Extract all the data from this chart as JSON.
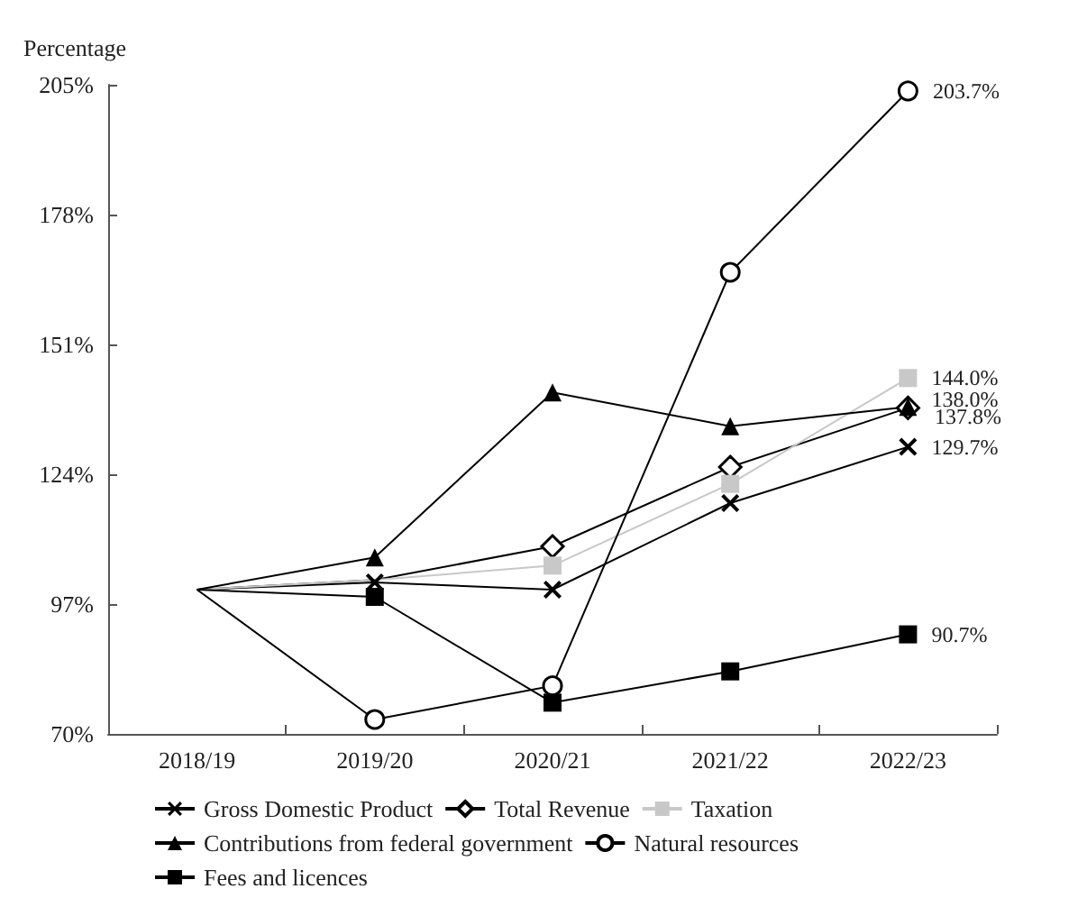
{
  "chart_data": {
    "type": "line",
    "ylabel": "Percentage",
    "categories": [
      "2018/19",
      "2019/20",
      "2020/21",
      "2021/22",
      "2022/23"
    ],
    "ylim": [
      70,
      205
    ],
    "yticks": [
      {
        "value": 70,
        "label": "70%"
      },
      {
        "value": 97,
        "label": "97%"
      },
      {
        "value": 124,
        "label": "124%"
      },
      {
        "value": 151,
        "label": "151%"
      },
      {
        "value": 178,
        "label": "178%"
      },
      {
        "value": 205,
        "label": "205%"
      }
    ],
    "grid": false,
    "legend": "bottom",
    "series": [
      {
        "name": "Gross Domestic Product",
        "color": "#000000",
        "marker": "cross",
        "values": [
          100,
          101.5,
          100,
          118,
          129.7
        ],
        "value_labels": [
          null,
          null,
          null,
          null,
          "129.7%"
        ]
      },
      {
        "name": "Total Revenue",
        "color": "#000000",
        "marker": "diamond",
        "values": [
          100,
          102,
          109,
          125.5,
          137.8
        ],
        "value_labels": [
          null,
          null,
          null,
          null,
          "137.8%"
        ]
      },
      {
        "name": "Taxation",
        "color": "#c8c8c8",
        "marker": "square",
        "values": [
          100,
          102,
          105,
          122,
          144.0
        ],
        "value_labels": [
          null,
          null,
          null,
          null,
          "144.0%"
        ]
      },
      {
        "name": "Contributions from federal government",
        "color": "#000000",
        "marker": "triangle",
        "values": [
          100,
          106.7,
          141,
          134,
          138.0
        ],
        "value_labels": [
          null,
          null,
          null,
          null,
          "138.0%"
        ]
      },
      {
        "name": "Natural resources",
        "color": "#000000",
        "marker": "circle",
        "values": [
          100,
          73,
          80,
          166,
          203.7
        ],
        "value_labels": [
          null,
          null,
          null,
          null,
          "203.7%"
        ]
      },
      {
        "name": "Fees and licences",
        "color": "#000000",
        "marker": "square",
        "values": [
          100,
          98.5,
          76.5,
          83,
          90.7
        ],
        "value_labels": [
          null,
          null,
          null,
          null,
          "90.7%"
        ]
      }
    ]
  }
}
